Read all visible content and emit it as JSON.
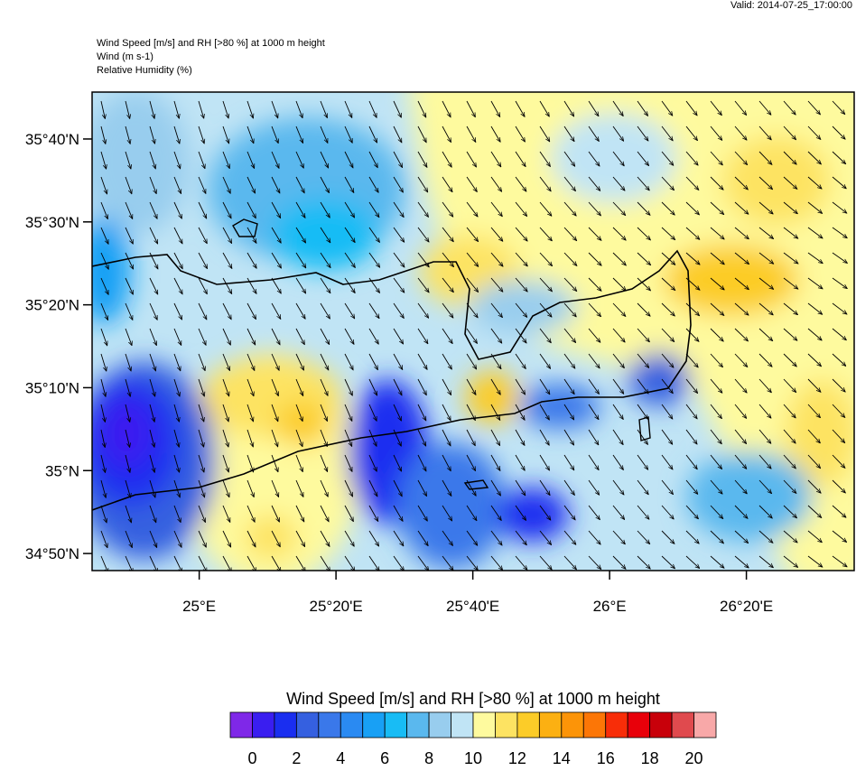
{
  "valid": "Valid: 2014-07-25_17:00:00",
  "titles": [
    "Wind Speed [m/s] and RH [>80 %] at 1000 m height",
    "Wind   (m s-1)",
    "Relative Humidity   (%)"
  ],
  "map": {
    "xlim": [
      24.739,
      26.596
    ],
    "ylim": [
      34.799,
      35.761
    ],
    "xticks": [
      {
        "value": 25,
        "label": "25°E"
      },
      {
        "value": 25.3333,
        "label": "25°20'E"
      },
      {
        "value": 25.6667,
        "label": "25°40'E"
      },
      {
        "value": 26,
        "label": "26°E"
      },
      {
        "value": 26.3333,
        "label": "26°20'E"
      }
    ],
    "yticks": [
      {
        "value": 35.6667,
        "label": "35°40'N"
      },
      {
        "value": 35.5,
        "label": "35°30'N"
      },
      {
        "value": 35.3333,
        "label": "35°20'N"
      },
      {
        "value": 35.1667,
        "label": "35°10'N"
      },
      {
        "value": 35,
        "label": "35°N"
      },
      {
        "value": 34.8333,
        "label": "34°50'N"
      }
    ]
  },
  "colorbar": {
    "title": "Wind Speed [m/s] and RH [>80 %] at 1000 m height",
    "lim": [
      -1,
      21
    ],
    "colors": [
      "#7f28e8",
      "#3a1ef0",
      "#1a2ef0",
      "#3560e0",
      "#3a78ea",
      "#2a8af2",
      "#18a0f5",
      "#18bcf5",
      "#5ab8ee",
      "#98cdee",
      "#c0e4f5",
      "#fefa9e",
      "#fde362",
      "#fccc28",
      "#fcb012",
      "#fc9408",
      "#fc7606",
      "#f82d08",
      "#e8000a",
      "#c8000a",
      "#e04a4e",
      "#f8a8a8"
    ],
    "ticks": [
      0,
      2,
      4,
      6,
      8,
      10,
      12,
      14,
      16,
      18,
      20
    ]
  }
}
